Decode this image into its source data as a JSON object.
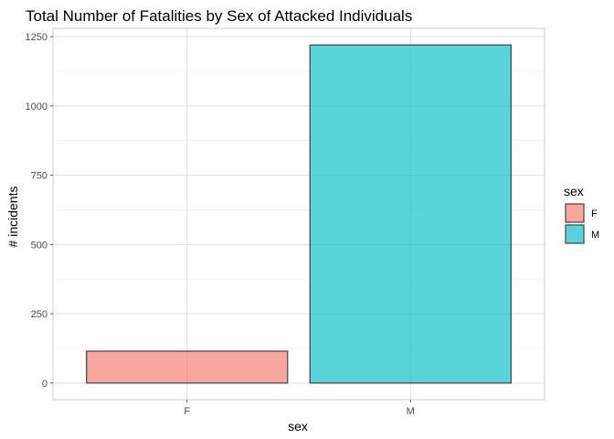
{
  "chart_data": {
    "type": "bar",
    "title": "Total Number of Fatalities by Sex of Attacked Individuals",
    "xlabel": "sex",
    "ylabel": "# incidents",
    "categories": [
      "F",
      "M"
    ],
    "values": [
      115,
      1220
    ],
    "ylim": [
      -60,
      1280
    ],
    "yticks": [
      0,
      250,
      500,
      750,
      1000,
      1250
    ],
    "grid": true,
    "legend": {
      "title": "sex",
      "position": "right",
      "entries": [
        "F",
        "M"
      ]
    },
    "colors": {
      "F": "#f8766d",
      "M": "#00bfc4",
      "bar_outline": "#4d4d4d",
      "grid_major": "#dedede",
      "grid_minor": "#efefef",
      "panel_border": "#cccccc"
    }
  }
}
